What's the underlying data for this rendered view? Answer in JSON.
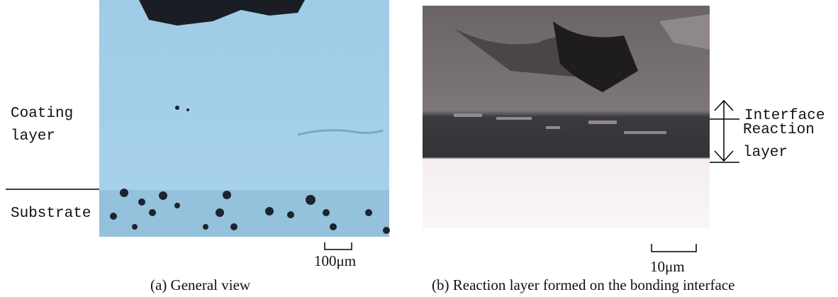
{
  "panel_a": {
    "coating_label": "Coating layer",
    "substrate_label": "Substrate",
    "scale_label": "100μm",
    "caption": "(a) General view"
  },
  "panel_b": {
    "interface_label": "Interface",
    "reaction_label": "Reaction layer",
    "scale_label": "10μm",
    "caption": "(b) Reaction layer formed on the bonding interface"
  }
}
